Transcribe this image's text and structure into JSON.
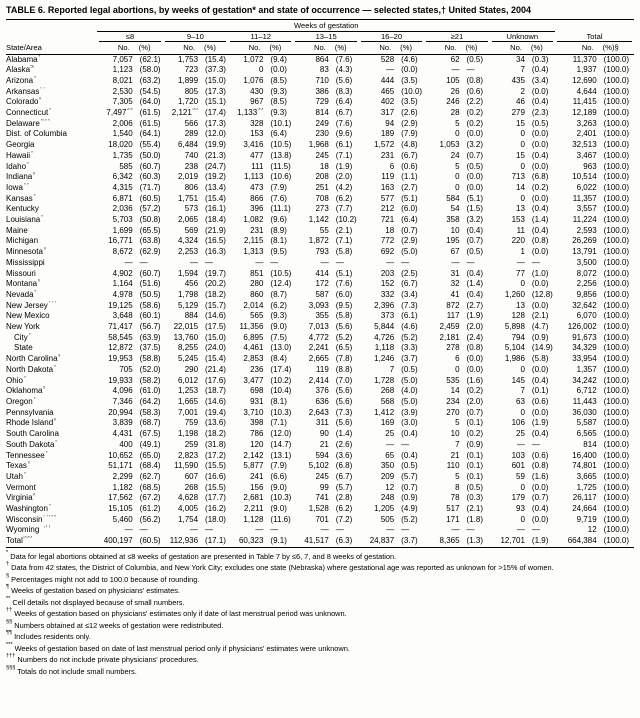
{
  "title": "TABLE 6. Reported legal abortions, by weeks of gestation* and state of occurrence — selected states,† United States, 2004",
  "table": {
    "spanner": "Weeks of gestation",
    "state_col_header": "State/Area",
    "col_groups": [
      "≤8",
      "9–10",
      "11–12",
      "13–15",
      "16–20",
      "≥21",
      "Unknown",
      "Total"
    ],
    "sub_no": "No.",
    "sub_pct": "(%)",
    "sub_pct_total": "(%)§",
    "rows": [
      {
        "name": "Alabama",
        "marker": "¶",
        "cells": [
          "7,057",
          "(62.1)",
          "1,753",
          "(15.4)",
          "1,072",
          "(9.4)",
          "864",
          "(7.6)",
          "528",
          "(4.6)",
          "62",
          "(0.5)",
          "34",
          "(0.3)",
          "11,370",
          "(100.0)"
        ]
      },
      {
        "name": "Alaska",
        "marker": "§,**",
        "cells": [
          "1,123",
          "(58.0)",
          "723",
          "(37.3)",
          "0",
          "(0.0)",
          "83",
          "(4.3)",
          "—",
          "(0.0)",
          "—",
          "—",
          "7",
          "(0.4)",
          "1,937",
          "(100.0)"
        ]
      },
      {
        "name": "Arizona",
        "marker": "¶",
        "cells": [
          "8,021",
          "(63.2)",
          "1,899",
          "(15.0)",
          "1,076",
          "(8.5)",
          "710",
          "(5.6)",
          "444",
          "(3.5)",
          "105",
          "(0.8)",
          "435",
          "(3.4)",
          "12,690",
          "(100.0)"
        ]
      },
      {
        "name": "Arkansas",
        "marker": "††",
        "cells": [
          "2,530",
          "(54.5)",
          "805",
          "(17.3)",
          "430",
          "(9.3)",
          "386",
          "(8.3)",
          "465",
          "(10.0)",
          "26",
          "(0.6)",
          "2",
          "(0.0)",
          "4,644",
          "(100.0)"
        ]
      },
      {
        "name": "Colorado",
        "marker": "¶",
        "cells": [
          "7,305",
          "(64.0)",
          "1,720",
          "(15.1)",
          "967",
          "(8.5)",
          "729",
          "(6.4)",
          "402",
          "(3.5)",
          "246",
          "(2.2)",
          "46",
          "(0.4)",
          "11,415",
          "(100.0)"
        ]
      },
      {
        "name": "Connecticut",
        "marker": "¶",
        "cells": [
          "7,497§§",
          "(61.5)",
          "2,121§§",
          "(17.4)",
          "1,133§§",
          "(9.3)",
          "814",
          "(6.7)",
          "317",
          "(2.6)",
          "28",
          "(0.2)",
          "279",
          "(2.3)",
          "12,189",
          "(100.0)"
        ]
      },
      {
        "name": "Delaware",
        "marker": "¶,¶¶",
        "cells": [
          "2,006",
          "(61.5)",
          "566",
          "(17.3)",
          "328",
          "(10.1)",
          "249",
          "(7.6)",
          "94",
          "(2.9)",
          "5",
          "(0.2)",
          "15",
          "(0.5)",
          "3,263",
          "(100.0)"
        ]
      },
      {
        "name": "Dist. of Columbia",
        "marker": "",
        "cells": [
          "1,540",
          "(64.1)",
          "289",
          "(12.0)",
          "153",
          "(6.4)",
          "230",
          "(9.6)",
          "189",
          "(7.9)",
          "0",
          "(0.0)",
          "0",
          "(0.0)",
          "2,401",
          "(100.0)"
        ]
      },
      {
        "name": "Georgia",
        "marker": "",
        "cells": [
          "18,020",
          "(55.4)",
          "6,484",
          "(19.9)",
          "3,416",
          "(10.5)",
          "1,968",
          "(6.1)",
          "1,572",
          "(4.8)",
          "1,053",
          "(3.2)",
          "0",
          "(0.0)",
          "32,513",
          "(100.0)"
        ]
      },
      {
        "name": "Hawaii",
        "marker": "¶",
        "cells": [
          "1,735",
          "(50.0)",
          "740",
          "(21.3)",
          "477",
          "(13.8)",
          "245",
          "(7.1)",
          "231",
          "(6.7)",
          "24",
          "(0.7)",
          "15",
          "(0.4)",
          "3,467",
          "(100.0)"
        ]
      },
      {
        "name": "Idaho",
        "marker": "¶",
        "cells": [
          "585",
          "(60.7)",
          "238",
          "(24.7)",
          "111",
          "(11.5)",
          "18",
          "(1.9)",
          "6",
          "(0.6)",
          "5",
          "(0.5)",
          "0",
          "(0.0)",
          "963",
          "(100.0)"
        ]
      },
      {
        "name": "Indiana",
        "marker": "¶",
        "cells": [
          "6,342",
          "(60.3)",
          "2,019",
          "(19.2)",
          "1,113",
          "(10.6)",
          "208",
          "(2.0)",
          "119",
          "(1.1)",
          "0",
          "(0.0)",
          "713",
          "(6.8)",
          "10,514",
          "(100.0)"
        ]
      },
      {
        "name": "Iowa",
        "marker": "¶¶",
        "cells": [
          "4,315",
          "(71.7)",
          "806",
          "(13.4)",
          "473",
          "(7.9)",
          "251",
          "(4.2)",
          "163",
          "(2.7)",
          "0",
          "(0.0)",
          "14",
          "(0.2)",
          "6,022",
          "(100.0)"
        ]
      },
      {
        "name": "Kansas",
        "marker": "¶",
        "cells": [
          "6,871",
          "(60.5)",
          "1,751",
          "(15.4)",
          "866",
          "(7.6)",
          "708",
          "(6.2)",
          "577",
          "(5.1)",
          "584",
          "(5.1)",
          "0",
          "(0.0)",
          "11,357",
          "(100.0)"
        ]
      },
      {
        "name": "Kentucky",
        "marker": "",
        "cells": [
          "2,036",
          "(57.2)",
          "573",
          "(16.1)",
          "396",
          "(11.1)",
          "273",
          "(7.7)",
          "212",
          "(6.0)",
          "54",
          "(1.5)",
          "13",
          "(0.4)",
          "3,557",
          "(100.0)"
        ]
      },
      {
        "name": "Louisiana",
        "marker": "¶",
        "cells": [
          "5,703",
          "(50.8)",
          "2,065",
          "(18.4)",
          "1,082",
          "(9.6)",
          "1,142",
          "(10.2)",
          "721",
          "(6.4)",
          "358",
          "(3.2)",
          "153",
          "(1.4)",
          "11,224",
          "(100.0)"
        ]
      },
      {
        "name": "Maine",
        "marker": "***",
        "cells": [
          "1,699",
          "(65.5)",
          "569",
          "(21.9)",
          "231",
          "(8.9)",
          "55",
          "(2.1)",
          "18",
          "(0.7)",
          "10",
          "(0.4)",
          "11",
          "(0.4)",
          "2,593",
          "(100.0)"
        ]
      },
      {
        "name": "Michigan",
        "marker": "***",
        "cells": [
          "16,771",
          "(63.8)",
          "4,324",
          "(16.5)",
          "2,115",
          "(8.1)",
          "1,872",
          "(7.1)",
          "772",
          "(2.9)",
          "195",
          "(0.7)",
          "220",
          "(0.8)",
          "26,269",
          "(100.0)"
        ]
      },
      {
        "name": "Minnesota",
        "marker": "¶",
        "cells": [
          "8,672",
          "(62.9)",
          "2,253",
          "(16.3)",
          "1,313",
          "(9.5)",
          "793",
          "(5.8)",
          "692",
          "(5.0)",
          "67",
          "(0.5)",
          "1",
          "(0.0)",
          "13,791",
          "(100.0)"
        ]
      },
      {
        "name": "Mississippi",
        "marker": "**",
        "cells": [
          "—",
          "—",
          "—",
          "—",
          "—",
          "—",
          "—",
          "—",
          "—",
          "—",
          "—",
          "—",
          "—",
          "—",
          "3,500",
          "(100.0)"
        ]
      },
      {
        "name": "Missouri",
        "marker": "",
        "cells": [
          "4,902",
          "(60.7)",
          "1,594",
          "(19.7)",
          "851",
          "(10.5)",
          "414",
          "(5.1)",
          "203",
          "(2.5)",
          "31",
          "(0.4)",
          "77",
          "(1.0)",
          "8,072",
          "(100.0)"
        ]
      },
      {
        "name": "Montana",
        "marker": "¶",
        "cells": [
          "1,164",
          "(51.6)",
          "456",
          "(20.2)",
          "280",
          "(12.4)",
          "172",
          "(7.6)",
          "152",
          "(6.7)",
          "32",
          "(1.4)",
          "0",
          "(0.0)",
          "2,256",
          "(100.0)"
        ]
      },
      {
        "name": "Nevada",
        "marker": "¶",
        "cells": [
          "4,978",
          "(50.5)",
          "1,798",
          "(18.2)",
          "860",
          "(8.7)",
          "587",
          "(6.0)",
          "332",
          "(3.4)",
          "41",
          "(0.4)",
          "1,260",
          "(12.8)",
          "9,856",
          "(100.0)"
        ]
      },
      {
        "name": "New Jersey",
        "marker": "†††",
        "cells": [
          "19,125",
          "(58.6)",
          "5,129",
          "(15.7)",
          "2,014",
          "(6.2)",
          "3,093",
          "(9.5)",
          "2,396",
          "(7.3)",
          "872",
          "(2.7)",
          "13",
          "(0.0)",
          "32,642",
          "(100.0)"
        ]
      },
      {
        "name": "New Mexico",
        "marker": "***",
        "cells": [
          "3,648",
          "(60.1)",
          "884",
          "(14.6)",
          "565",
          "(9.3)",
          "355",
          "(5.8)",
          "373",
          "(6.1)",
          "117",
          "(1.9)",
          "128",
          "(2.1)",
          "6,070",
          "(100.0)"
        ]
      },
      {
        "name": "New York",
        "marker": "",
        "cells": [
          "71,417",
          "(56.7)",
          "22,015",
          "(17.5)",
          "11,356",
          "(9.0)",
          "7,013",
          "(5.6)",
          "5,844",
          "(4.6)",
          "2,459",
          "(2.0)",
          "5,898",
          "(4.7)",
          "126,002",
          "(100.0)"
        ]
      },
      {
        "name": "City",
        "marker": "¶",
        "indent": true,
        "cells": [
          "58,545",
          "(63.9)",
          "13,760",
          "(15.0)",
          "6,895",
          "(7.5)",
          "4,772",
          "(5.2)",
          "4,726",
          "(5.2)",
          "2,181",
          "(2.4)",
          "794",
          "(0.9)",
          "91,673",
          "(100.0)"
        ]
      },
      {
        "name": "State",
        "marker": "",
        "indent": true,
        "cells": [
          "12,872",
          "(37.5)",
          "8,255",
          "(24.0)",
          "4,461",
          "(13.0)",
          "2,241",
          "(6.5)",
          "1,118",
          "(3.3)",
          "278",
          "(0.8)",
          "5,104",
          "(14.9)",
          "34,329",
          "(100.0)"
        ]
      },
      {
        "name": "North Carolina",
        "marker": "¶",
        "cells": [
          "19,953",
          "(58.8)",
          "5,245",
          "(15.4)",
          "2,853",
          "(8.4)",
          "2,665",
          "(7.8)",
          "1,246",
          "(3.7)",
          "6",
          "(0.0)",
          "1,986",
          "(5.8)",
          "33,954",
          "(100.0)"
        ]
      },
      {
        "name": "North Dakota",
        "marker": "¶",
        "cells": [
          "705",
          "(52.0)",
          "290",
          "(21.4)",
          "236",
          "(17.4)",
          "119",
          "(8.8)",
          "7",
          "(0.5)",
          "0",
          "(0.0)",
          "0",
          "(0.0)",
          "1,357",
          "(100.0)"
        ]
      },
      {
        "name": "Ohio",
        "marker": "¶",
        "cells": [
          "19,933",
          "(58.2)",
          "6,012",
          "(17.6)",
          "3,477",
          "(10.2)",
          "2,414",
          "(7.0)",
          "1,728",
          "(5.0)",
          "535",
          "(1.6)",
          "145",
          "(0.4)",
          "34,242",
          "(100.0)"
        ]
      },
      {
        "name": "Oklahoma",
        "marker": "¶",
        "cells": [
          "4,096",
          "(61.0)",
          "1,253",
          "(18.7)",
          "698",
          "(10.4)",
          "376",
          "(5.6)",
          "268",
          "(4.0)",
          "14",
          "(0.2)",
          "7",
          "(0.1)",
          "6,712",
          "(100.0)"
        ]
      },
      {
        "name": "Oregon",
        "marker": "¶",
        "cells": [
          "7,346",
          "(64.2)",
          "1,665",
          "(14.6)",
          "931",
          "(8.1)",
          "636",
          "(5.6)",
          "568",
          "(5.0)",
          "234",
          "(2.0)",
          "63",
          "(0.6)",
          "11,443",
          "(100.0)"
        ]
      },
      {
        "name": "Pennsylvania",
        "marker": "",
        "cells": [
          "20,994",
          "(58.3)",
          "7,001",
          "(19.4)",
          "3,710",
          "(10.3)",
          "2,643",
          "(7.3)",
          "1,412",
          "(3.9)",
          "270",
          "(0.7)",
          "0",
          "(0.0)",
          "36,030",
          "(100.0)"
        ]
      },
      {
        "name": "Rhode Island",
        "marker": "¶",
        "cells": [
          "3,839",
          "(68.7)",
          "759",
          "(13.6)",
          "398",
          "(7.1)",
          "311",
          "(5.6)",
          "169",
          "(3.0)",
          "5",
          "(0.1)",
          "106",
          "(1.9)",
          "5,587",
          "(100.0)"
        ]
      },
      {
        "name": "South Carolina",
        "marker": "",
        "cells": [
          "4,431",
          "(67.5)",
          "1,198",
          "(18.2)",
          "786",
          "(12.0)",
          "90",
          "(1.4)",
          "25",
          "(0.4)",
          "10",
          "(0.2)",
          "25",
          "(0.4)",
          "6,565",
          "(100.0)"
        ]
      },
      {
        "name": "South Dakota",
        "marker": "¶",
        "cells": [
          "400",
          "(49.1)",
          "259",
          "(31.8)",
          "120",
          "(14.7)",
          "21",
          "(2.6)",
          "—",
          "—",
          "7",
          "(0.9)",
          "—",
          "—",
          "814",
          "(100.0)"
        ]
      },
      {
        "name": "Tennessee",
        "marker": "¶",
        "cells": [
          "10,652",
          "(65.0)",
          "2,823",
          "(17.2)",
          "2,142",
          "(13.1)",
          "594",
          "(3.6)",
          "65",
          "(0.4)",
          "21",
          "(0.1)",
          "103",
          "(0.6)",
          "16,400",
          "(100.0)"
        ]
      },
      {
        "name": "Texas",
        "marker": "¶",
        "cells": [
          "51,171",
          "(68.4)",
          "11,590",
          "(15.5)",
          "5,877",
          "(7.9)",
          "5,102",
          "(6.8)",
          "350",
          "(0.5)",
          "110",
          "(0.1)",
          "601",
          "(0.8)",
          "74,801",
          "(100.0)"
        ]
      },
      {
        "name": "Utah",
        "marker": "¶",
        "cells": [
          "2,299",
          "(62.7)",
          "607",
          "(16.6)",
          "241",
          "(6.6)",
          "245",
          "(6.7)",
          "209",
          "(5.7)",
          "5",
          "(0.1)",
          "59",
          "(1.6)",
          "3,665",
          "(100.0)"
        ]
      },
      {
        "name": "Vermont",
        "marker": "",
        "cells": [
          "1,182",
          "(68.5)",
          "268",
          "(15.5)",
          "156",
          "(9.0)",
          "99",
          "(5.7)",
          "12",
          "(0.7)",
          "8",
          "(0.5)",
          "0",
          "(0.0)",
          "1,725",
          "(100.0)"
        ]
      },
      {
        "name": "Virginia",
        "marker": "¶",
        "cells": [
          "17,562",
          "(67.2)",
          "4,628",
          "(17.7)",
          "2,681",
          "(10.3)",
          "741",
          "(2.8)",
          "248",
          "(0.9)",
          "78",
          "(0.3)",
          "179",
          "(0.7)",
          "26,117",
          "(100.0)"
        ]
      },
      {
        "name": "Washington",
        "marker": "¶",
        "cells": [
          "15,105",
          "(61.2)",
          "4,005",
          "(16.2)",
          "2,211",
          "(9.0)",
          "1,528",
          "(6.2)",
          "1,205",
          "(4.9)",
          "517",
          "(2.1)",
          "93",
          "(0.4)",
          "24,664",
          "(100.0)"
        ]
      },
      {
        "name": "Wisconsin",
        "marker": "††,¶¶",
        "cells": [
          "5,460",
          "(56.2)",
          "1,754",
          "(18.0)",
          "1,128",
          "(11.6)",
          "701",
          "(7.2)",
          "505",
          "(5.2)",
          "171",
          "(1.8)",
          "0",
          "(0.0)",
          "9,719",
          "(100.0)"
        ]
      },
      {
        "name": "Wyoming",
        "marker": "**,††",
        "cells": [
          "—",
          "—",
          "—",
          "—",
          "—",
          "—",
          "—",
          "—",
          "—",
          "—",
          "—",
          "—",
          "—",
          "—",
          "12",
          "(100.0)"
        ]
      },
      {
        "name": "Total",
        "marker": "§§§",
        "total": true,
        "cells": [
          "400,197",
          "(60.5)",
          "112,936",
          "(17.1)",
          "60,323",
          "(9.1)",
          "41,517",
          "(6.3)",
          "24,837",
          "(3.7)",
          "8,365",
          "(1.3)",
          "12,701",
          "(1.9)",
          "664,384",
          "(100.0)"
        ]
      }
    ]
  },
  "footnotes": [
    {
      "sym": "*",
      "text": "Data for legal abortions obtained at ≤8 weeks of gestation are presented in Table 7 by ≤6, 7, and 8 weeks of gestation."
    },
    {
      "sym": "†",
      "text": "Data from 42 states, the District of Columbia, and New York City; excludes one state (Nebraska) where gestational age was reported as unknown for >15% of women."
    },
    {
      "sym": "§",
      "text": "Percentages might not add to 100.0 because of rounding."
    },
    {
      "sym": "¶",
      "text": "Weeks of gestation based on physicians' estimates."
    },
    {
      "sym": "**",
      "text": "Cell details not displayed because of small numbers."
    },
    {
      "sym": "††",
      "text": "Weeks of gestation based on physicians' estimates only if date of last menstrual period was unknown."
    },
    {
      "sym": "§§",
      "text": "Numbers obtained at ≤12 weeks of gestation were redistributed."
    },
    {
      "sym": "¶¶",
      "text": "Includes residents only."
    },
    {
      "sym": "***",
      "text": "Weeks of gestation based on date of last menstrual period only if physicians' estimates were unknown."
    },
    {
      "sym": "†††",
      "text": "Numbers do not include private physicians' procedures."
    },
    {
      "sym": "§§§",
      "text": "Totals do not include small numbers."
    }
  ]
}
